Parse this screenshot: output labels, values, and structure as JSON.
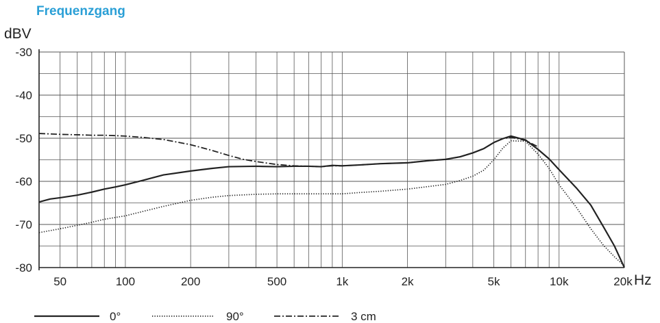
{
  "chart_data": {
    "type": "line",
    "title": "Frequenzgang",
    "ylabel": "dBV",
    "xlabel": "Hz",
    "xscale": "log",
    "xlim": [
      40,
      20000
    ],
    "ylim": [
      -80,
      -30
    ],
    "grid": true,
    "legend_position": "bottom",
    "y_ticks": [
      -30,
      -40,
      -50,
      -60,
      -70,
      -80
    ],
    "y_tick_labels": [
      "-30",
      "-40",
      "-50",
      "-60",
      "-70",
      "-80"
    ],
    "x_ticks": [
      50,
      100,
      200,
      500,
      1000,
      2000,
      5000,
      10000,
      20000
    ],
    "x_tick_labels": [
      "50",
      "100",
      "200",
      "500",
      "1k",
      "2k",
      "5k",
      "10k",
      "20k"
    ],
    "series": [
      {
        "name": "0°",
        "style": "solid",
        "color": "#222222",
        "x": [
          40,
          45,
          50,
          60,
          70,
          80,
          90,
          100,
          120,
          150,
          200,
          250,
          300,
          400,
          500,
          600,
          700,
          800,
          900,
          1000,
          1200,
          1500,
          2000,
          2500,
          3000,
          3500,
          4000,
          4500,
          5000,
          5500,
          6000,
          7000,
          8000,
          9000,
          10000,
          12000,
          14000,
          16000,
          18000,
          20000
        ],
        "y": [
          -64.8,
          -64.1,
          -63.8,
          -63.2,
          -62.5,
          -61.8,
          -61.3,
          -60.8,
          -59.8,
          -58.5,
          -57.6,
          -57.0,
          -56.6,
          -56.5,
          -56.6,
          -56.5,
          -56.5,
          -56.6,
          -56.3,
          -56.4,
          -56.2,
          -55.9,
          -55.7,
          -55.2,
          -54.9,
          -54.3,
          -53.4,
          -52.4,
          -51.0,
          -50.1,
          -49.5,
          -50.4,
          -52.6,
          -54.8,
          -57.3,
          -61.5,
          -65.5,
          -70.5,
          -75.0,
          -80.0
        ]
      },
      {
        "name": "90°",
        "style": "dotted",
        "color": "#222222",
        "x": [
          40,
          50,
          60,
          70,
          80,
          100,
          120,
          150,
          200,
          250,
          300,
          400,
          500,
          600,
          700,
          800,
          1000,
          1200,
          1500,
          2000,
          2500,
          3000,
          3500,
          4000,
          4500,
          5000,
          5500,
          6000,
          7000,
          8000,
          9000,
          10000,
          12000,
          14000,
          16000,
          18000,
          20000
        ],
        "y": [
          -71.9,
          -71.0,
          -70.2,
          -69.5,
          -68.8,
          -68.0,
          -67.0,
          -65.8,
          -64.4,
          -63.7,
          -63.3,
          -63.0,
          -62.9,
          -62.9,
          -62.9,
          -62.9,
          -62.9,
          -62.6,
          -62.3,
          -61.8,
          -61.2,
          -60.7,
          -59.8,
          -58.8,
          -57.4,
          -55.0,
          -52.3,
          -50.6,
          -50.7,
          -53.7,
          -57.0,
          -60.8,
          -66.0,
          -71.0,
          -74.8,
          -77.5,
          -79.6
        ]
      },
      {
        "name": "3 cm",
        "style": "dash-dot",
        "color": "#222222",
        "x": [
          40,
          50,
          60,
          70,
          80,
          90,
          100,
          120,
          150,
          200,
          250,
          300,
          350,
          400,
          500,
          600,
          700,
          800,
          900,
          1000,
          1200,
          1500,
          2000,
          2500,
          3000,
          3500,
          4000,
          4500,
          5000,
          5500,
          6000,
          7000,
          8000
        ],
        "y": [
          -48.9,
          -49.1,
          -49.2,
          -49.3,
          -49.3,
          -49.4,
          -49.5,
          -49.8,
          -50.3,
          -51.5,
          -52.8,
          -54.0,
          -54.9,
          -55.4,
          -56.1,
          -56.4,
          -56.5,
          -56.6,
          -56.4,
          -56.4,
          -56.2,
          -55.9,
          -55.7,
          -55.2,
          -54.9,
          -54.3,
          -53.4,
          -52.4,
          -51.0,
          -50.1,
          -49.8,
          -50.5,
          -52.0
        ]
      }
    ]
  }
}
